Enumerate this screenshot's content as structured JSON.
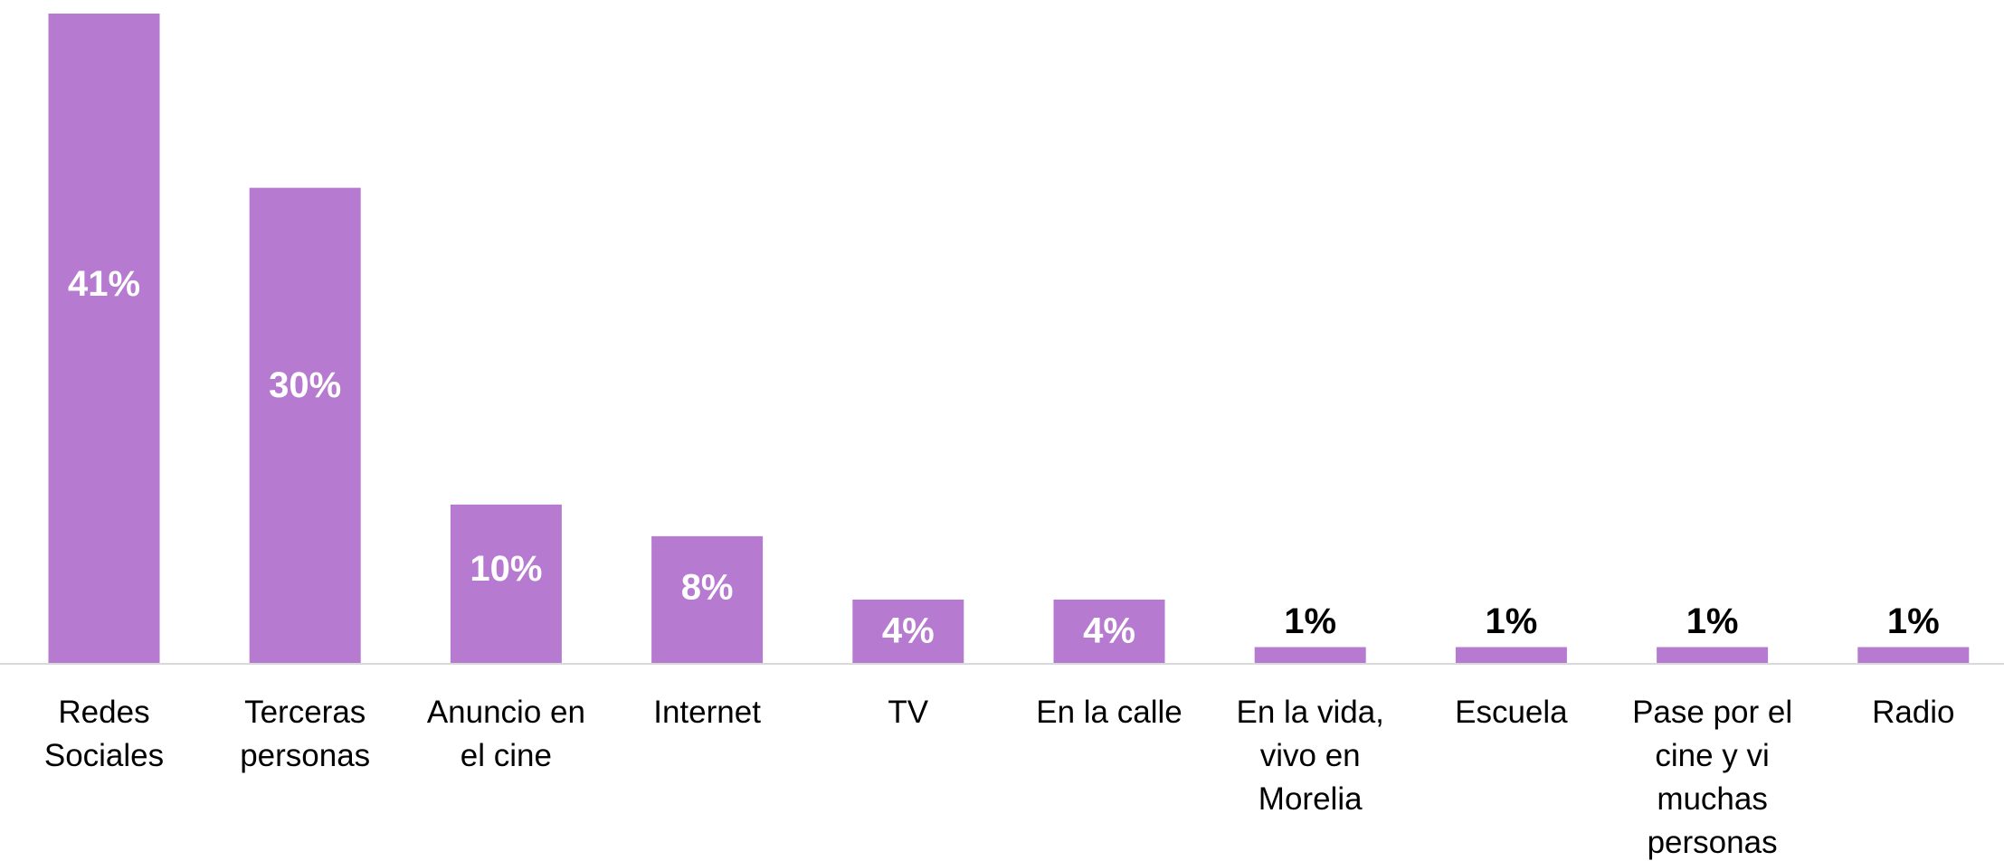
{
  "chart_data": {
    "type": "bar",
    "categories": [
      "Redes Sociales",
      "Terceras personas",
      "Anuncio en el cine",
      "Internet",
      "TV",
      "En la calle",
      "En la vida, vivo en Morelia",
      "Escuela",
      "Pase por el cine y vi muchas personas",
      "Radio"
    ],
    "values": [
      41,
      30,
      10,
      8,
      4,
      4,
      1,
      1,
      1,
      1
    ],
    "value_labels": [
      "41%",
      "30%",
      "10%",
      "8%",
      "4%",
      "4%",
      "1%",
      "1%",
      "1%",
      "1%"
    ],
    "color": "#b67bd0"
  }
}
